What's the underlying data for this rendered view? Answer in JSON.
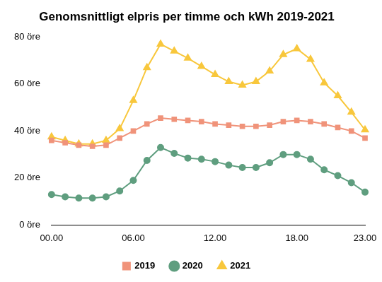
{
  "chart_data": {
    "type": "line",
    "title": "Genomsnittligt elpris per timme och kWh 2019-2021",
    "categories": [
      "00.00",
      null,
      null,
      null,
      null,
      null,
      "06.00",
      null,
      null,
      null,
      null,
      null,
      "12.00",
      null,
      null,
      null,
      null,
      null,
      "18.00",
      null,
      null,
      null,
      null,
      "23.00"
    ],
    "series": [
      {
        "name": "2019",
        "color": "#f0937a",
        "marker": "square",
        "line_style": "solid",
        "values": [
          36,
          35,
          34,
          33.5,
          34,
          37,
          40,
          43,
          45.5,
          45,
          44.5,
          44,
          43,
          42.5,
          42,
          42,
          42.5,
          44,
          44.5,
          44,
          43,
          41.5,
          40,
          37
        ]
      },
      {
        "name": "2020",
        "color": "#5f9e7f",
        "marker": "circle",
        "line_style": "solid",
        "values": [
          13,
          12,
          11.5,
          11.5,
          12,
          14.5,
          19,
          27.5,
          33,
          30.5,
          28.5,
          28,
          27,
          25.5,
          24.5,
          24.5,
          26.5,
          30,
          30,
          28,
          23.5,
          21,
          18,
          14
        ]
      },
      {
        "name": "2021",
        "color": "#f8c73c",
        "marker": "triangle",
        "line_style": "solid",
        "values": [
          37.5,
          36,
          34.5,
          34.5,
          36,
          41,
          53,
          67,
          77,
          74,
          71,
          67.5,
          64,
          61,
          59.5,
          61,
          65.5,
          72.5,
          75,
          70.5,
          60.5,
          55,
          48,
          40.5
        ]
      }
    ],
    "ylim": [
      0,
      80
    ],
    "yticks": [
      {
        "value": 0,
        "label": "0 öre"
      },
      {
        "value": 20,
        "label": "20 öre"
      },
      {
        "value": 40,
        "label": "40 öre"
      },
      {
        "value": 60,
        "label": "60 öre"
      },
      {
        "value": 80,
        "label": "80 öre"
      }
    ],
    "grid": false,
    "legend": "bottom"
  }
}
